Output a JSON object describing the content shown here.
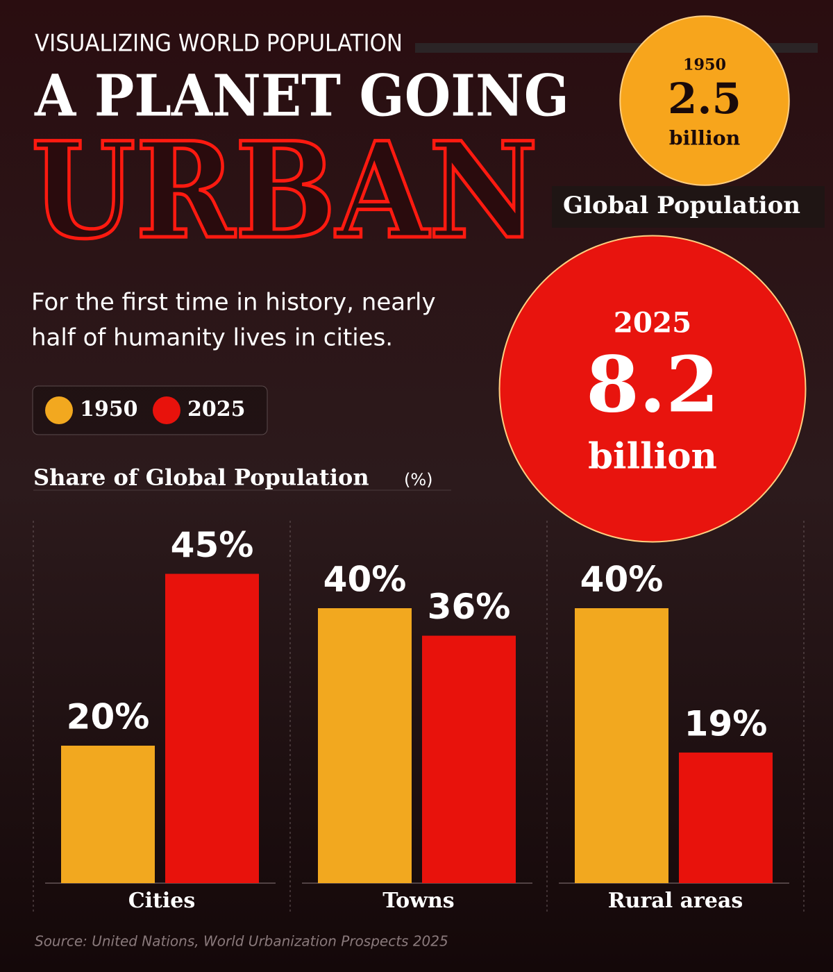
{
  "header": {
    "kicker": "VISUALIZING WORLD POPULATION",
    "title": "A PLANET GOING",
    "title_emphasis": "URBAN",
    "subtitle_lines": [
      "For the first time in history, nearly",
      "half of humanity lives in cities."
    ]
  },
  "population": {
    "title": "Global Population",
    "items": [
      {
        "year": "1950",
        "value": 2.5,
        "unit": "billion",
        "color": "#f7a51c"
      },
      {
        "year": "2025",
        "value": 8.2,
        "unit": "billion",
        "color": "#e8140e"
      }
    ]
  },
  "chart_data": {
    "type": "bar",
    "title": "Share of Global Population",
    "title_unit": "(%)",
    "categories": [
      "Cities",
      "Towns",
      "Rural areas"
    ],
    "series": [
      {
        "name": "1950",
        "color": "#f2a81f",
        "values": [
          20,
          40,
          40
        ],
        "value_labels": [
          "20%",
          "40%",
          "40%"
        ]
      },
      {
        "name": "2025",
        "color": "#e8120c",
        "values": [
          45,
          36,
          19
        ],
        "value_labels": [
          "45%",
          "36%",
          "19%"
        ]
      }
    ]
  },
  "source": "Source: United Nations, World Urbanization Prospects 2025"
}
